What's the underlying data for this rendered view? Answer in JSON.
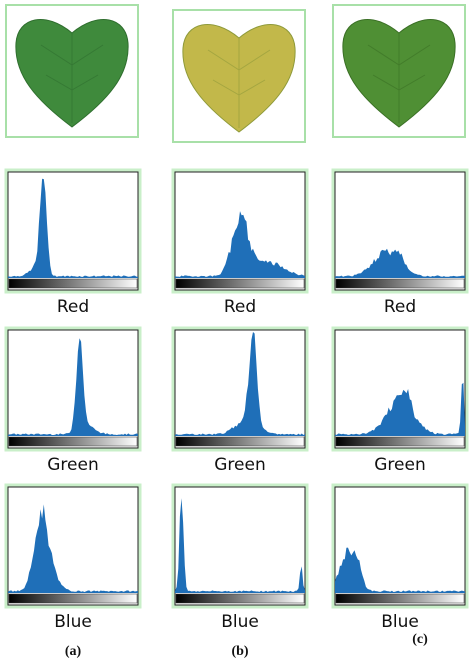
{
  "columns": [
    {
      "label": "(a)",
      "histograms": [
        "Red",
        "Green",
        "Blue"
      ]
    },
    {
      "label": "(b)",
      "histograms": [
        "Red",
        "Green",
        "Blue"
      ]
    },
    {
      "label": "(c)",
      "histograms": [
        "Red",
        "Green",
        "Blue"
      ]
    }
  ]
}
